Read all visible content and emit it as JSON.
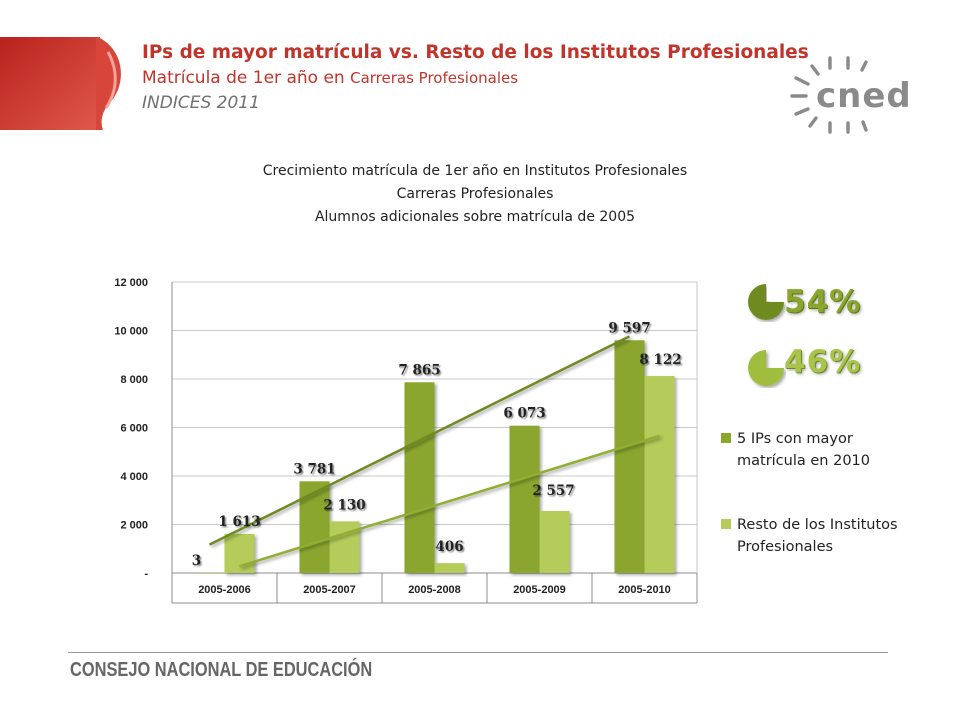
{
  "header": {
    "title": "IPs  de mayor matrícula vs. Resto de los  Institutos Profesionales",
    "subtitle_main": "Matrícula de 1er año en ",
    "subtitle_small": "Carreras Profesionales",
    "index_line": "INDICES 2011"
  },
  "logo": {
    "text": "cned",
    "icon": "cned-sun-logo-icon"
  },
  "colors": {
    "title": "#c0342b",
    "series_top": "#8aa62e",
    "series_rest": "#b5cc5a",
    "trend_top": "#6f8a22",
    "trend_rest": "#8fae33"
  },
  "percent_badges": [
    {
      "value": "54%",
      "icon": "pie-quarter-icon"
    },
    {
      "value": "46%",
      "icon": "pie-quarter-icon"
    }
  ],
  "chart_data": {
    "type": "bar",
    "title": [
      "Crecimiento matrícula de 1er año en Institutos Profesionales",
      "Carreras Profesionales",
      "Alumnos adicionales sobre matrícula de 2005"
    ],
    "categories": [
      "2005-2006",
      "2005-2007",
      "2005-2008",
      "2005-2009",
      "2005-2010"
    ],
    "series": [
      {
        "name": "5 IPs con mayor matrícula en 2010",
        "values": [
          3,
          3781,
          7865,
          6073,
          9597
        ],
        "labels": [
          "3",
          "3 781",
          "7 865",
          "6 073",
          "9 597"
        ]
      },
      {
        "name": "Resto de los Institutos Profesionales",
        "values": [
          1613,
          2130,
          406,
          2557,
          8122
        ],
        "labels": [
          "1 613",
          "2 130",
          "406",
          "2 557",
          "8 122"
        ]
      }
    ],
    "trendlines": true,
    "ylim": [
      0,
      12000
    ],
    "yticks": [
      0,
      2000,
      4000,
      6000,
      8000,
      10000,
      12000
    ],
    "ytick_labels": [
      "-",
      "2 000",
      "4 000",
      "6 000",
      "8 000",
      "10 000",
      "12 000"
    ],
    "legend_position": "right",
    "grid": true
  },
  "legend": [
    {
      "line1": "5 IPs con mayor",
      "line2": "matrícula en 2010"
    },
    {
      "line1": "Resto de los Institutos",
      "line2": "Profesionales"
    }
  ],
  "footer": {
    "organization": "CONSEJO NACIONAL DE EDUCACIÓN"
  }
}
